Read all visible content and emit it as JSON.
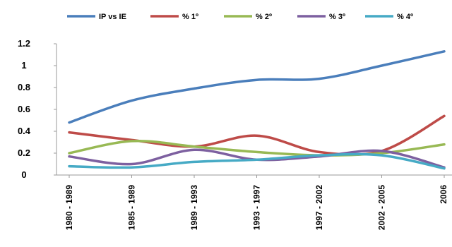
{
  "chart_data": {
    "type": "line",
    "categories": [
      "1980 - 1989",
      "1985 - 1989",
      "1989 - 1993",
      "1993 - 1997",
      "1997 - 2002",
      "2002 - 2005",
      "2006"
    ],
    "series": [
      {
        "name": "IP vs IE",
        "color": "#4a7ebb",
        "values": [
          0.48,
          0.68,
          0.79,
          0.87,
          0.88,
          1.0,
          1.13
        ]
      },
      {
        "name": "% 1º",
        "color": "#be4b48",
        "values": [
          0.39,
          0.32,
          0.26,
          0.36,
          0.21,
          0.22,
          0.54
        ]
      },
      {
        "name": "% 2º",
        "color": "#98b954",
        "values": [
          0.2,
          0.31,
          0.26,
          0.21,
          0.18,
          0.2,
          0.28
        ]
      },
      {
        "name": "% 3º",
        "color": "#7d60a0",
        "values": [
          0.17,
          0.1,
          0.23,
          0.14,
          0.17,
          0.22,
          0.07
        ]
      },
      {
        "name": "% 4º",
        "color": "#46aac5",
        "values": [
          0.08,
          0.07,
          0.12,
          0.14,
          0.18,
          0.18,
          0.06
        ]
      }
    ],
    "yticks": [
      "1.2",
      "1",
      "0.8",
      "0.6",
      "0.4",
      "0.2",
      "0"
    ],
    "ylim": [
      0,
      1.2
    ],
    "grid": false,
    "legend": "top"
  }
}
